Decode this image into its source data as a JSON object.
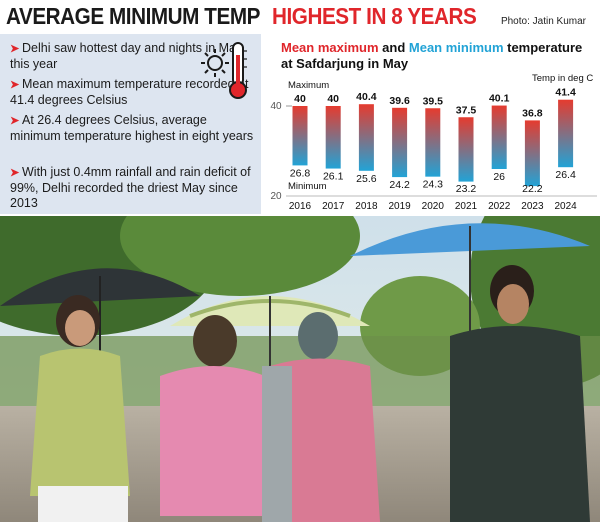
{
  "headline": {
    "black": "AVERAGE MINIMUM TEMP",
    "red": "HIGHEST IN 8 YEARS"
  },
  "credit": "Photo: Jatin Kumar",
  "bullets": [
    "Delhi saw hottest day and nights in May this year",
    "Mean maximum temperature recorded at 41.4 degrees Celsius",
    "At 26.4 degrees Celsius, average minimum temperature highest in eight years",
    "With just 0.4mm rainfall and rain deficit of 99%, Delhi recorded the driest May since 2013"
  ],
  "chart_title": {
    "max": "Mean maximum",
    "and": " and ",
    "min": "Mean minimum",
    "rest": " temperature at Safdarjung in May"
  },
  "chart_data": {
    "type": "bar",
    "categories": [
      "2016",
      "2017",
      "2018",
      "2019",
      "2020",
      "2021",
      "2022",
      "2023",
      "2024"
    ],
    "series": [
      {
        "name": "Maximum",
        "values": [
          40,
          40,
          40.4,
          39.6,
          39.5,
          37.5,
          40.1,
          36.8,
          41.4
        ]
      },
      {
        "name": "Minimum",
        "values": [
          26.8,
          26.1,
          25.6,
          24.2,
          24.3,
          23.2,
          26,
          22.2,
          26.4
        ]
      }
    ],
    "max_labels": [
      "40",
      "40",
      "40.4",
      "39.6",
      "39.5",
      "37.5",
      "40.1",
      "36.8",
      "41.4"
    ],
    "min_labels": [
      "26.8",
      "26.1",
      "25.6",
      "24.2",
      "24.3",
      "23.2",
      "26",
      "22.2",
      "26.4"
    ],
    "yticks": [
      "40",
      "20"
    ],
    "ylim": [
      20,
      41.4
    ],
    "unit_label": "Temp in deg C",
    "legend_max": "Maximum",
    "legend_min": "Minimum",
    "colors": {
      "max": "#e53b2f",
      "min": "#22a3d6"
    }
  }
}
